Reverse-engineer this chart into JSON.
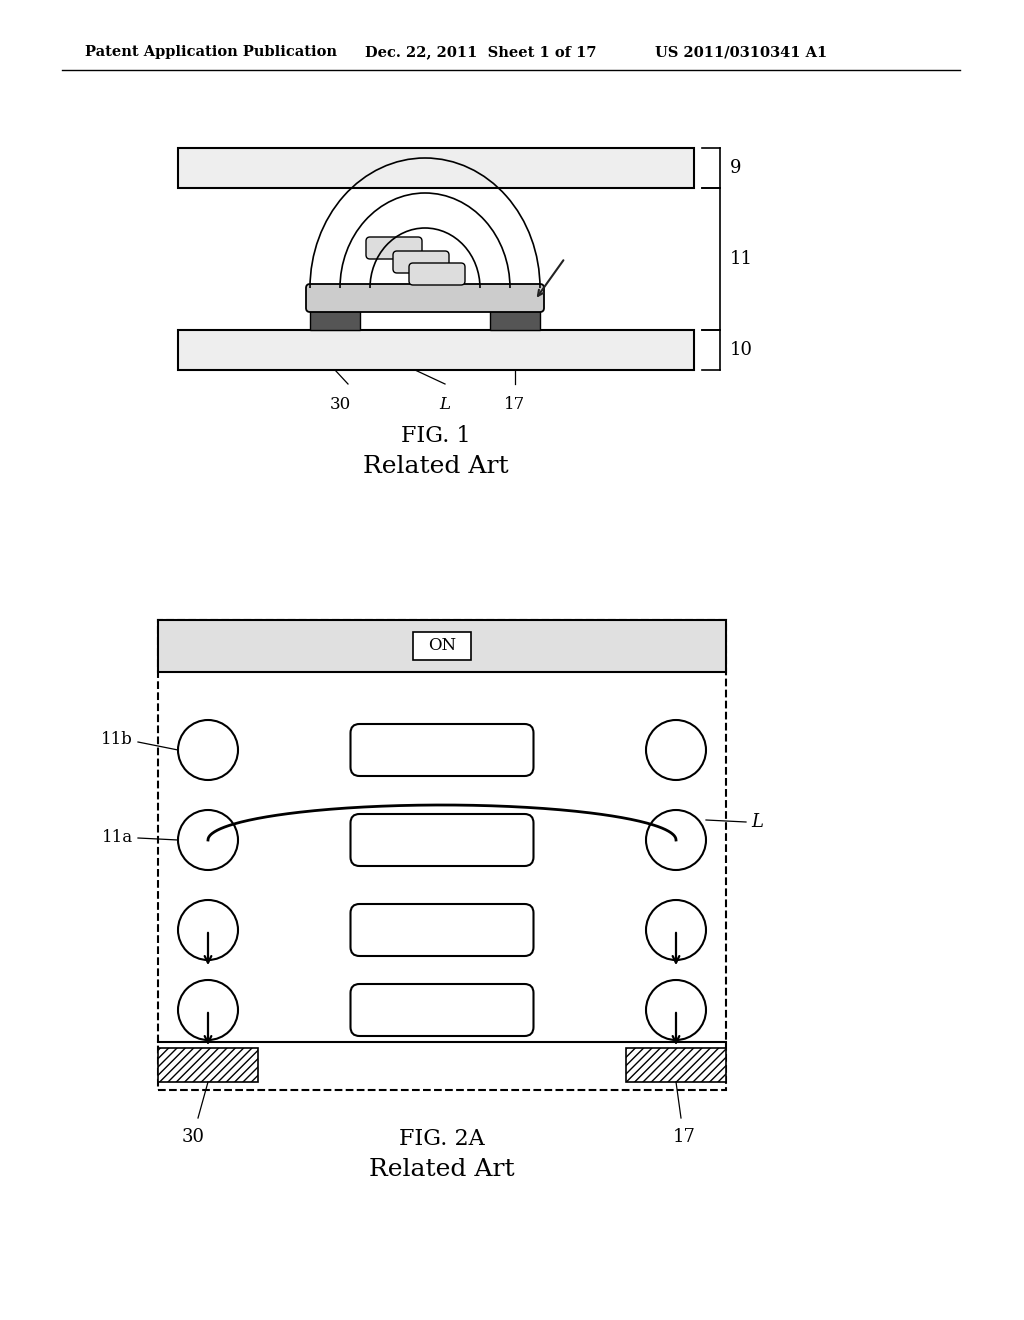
{
  "bg_color": "#ffffff",
  "header_left": "Patent Application Publication",
  "header_mid": "Dec. 22, 2011  Sheet 1 of 17",
  "header_right": "US 2011/0310341 A1",
  "fig1_title": "FIG. 1",
  "fig1_subtitle": "Related Art",
  "fig2_title": "FIG. 2A",
  "fig2_subtitle": "Related Art",
  "line_color": "#000000"
}
